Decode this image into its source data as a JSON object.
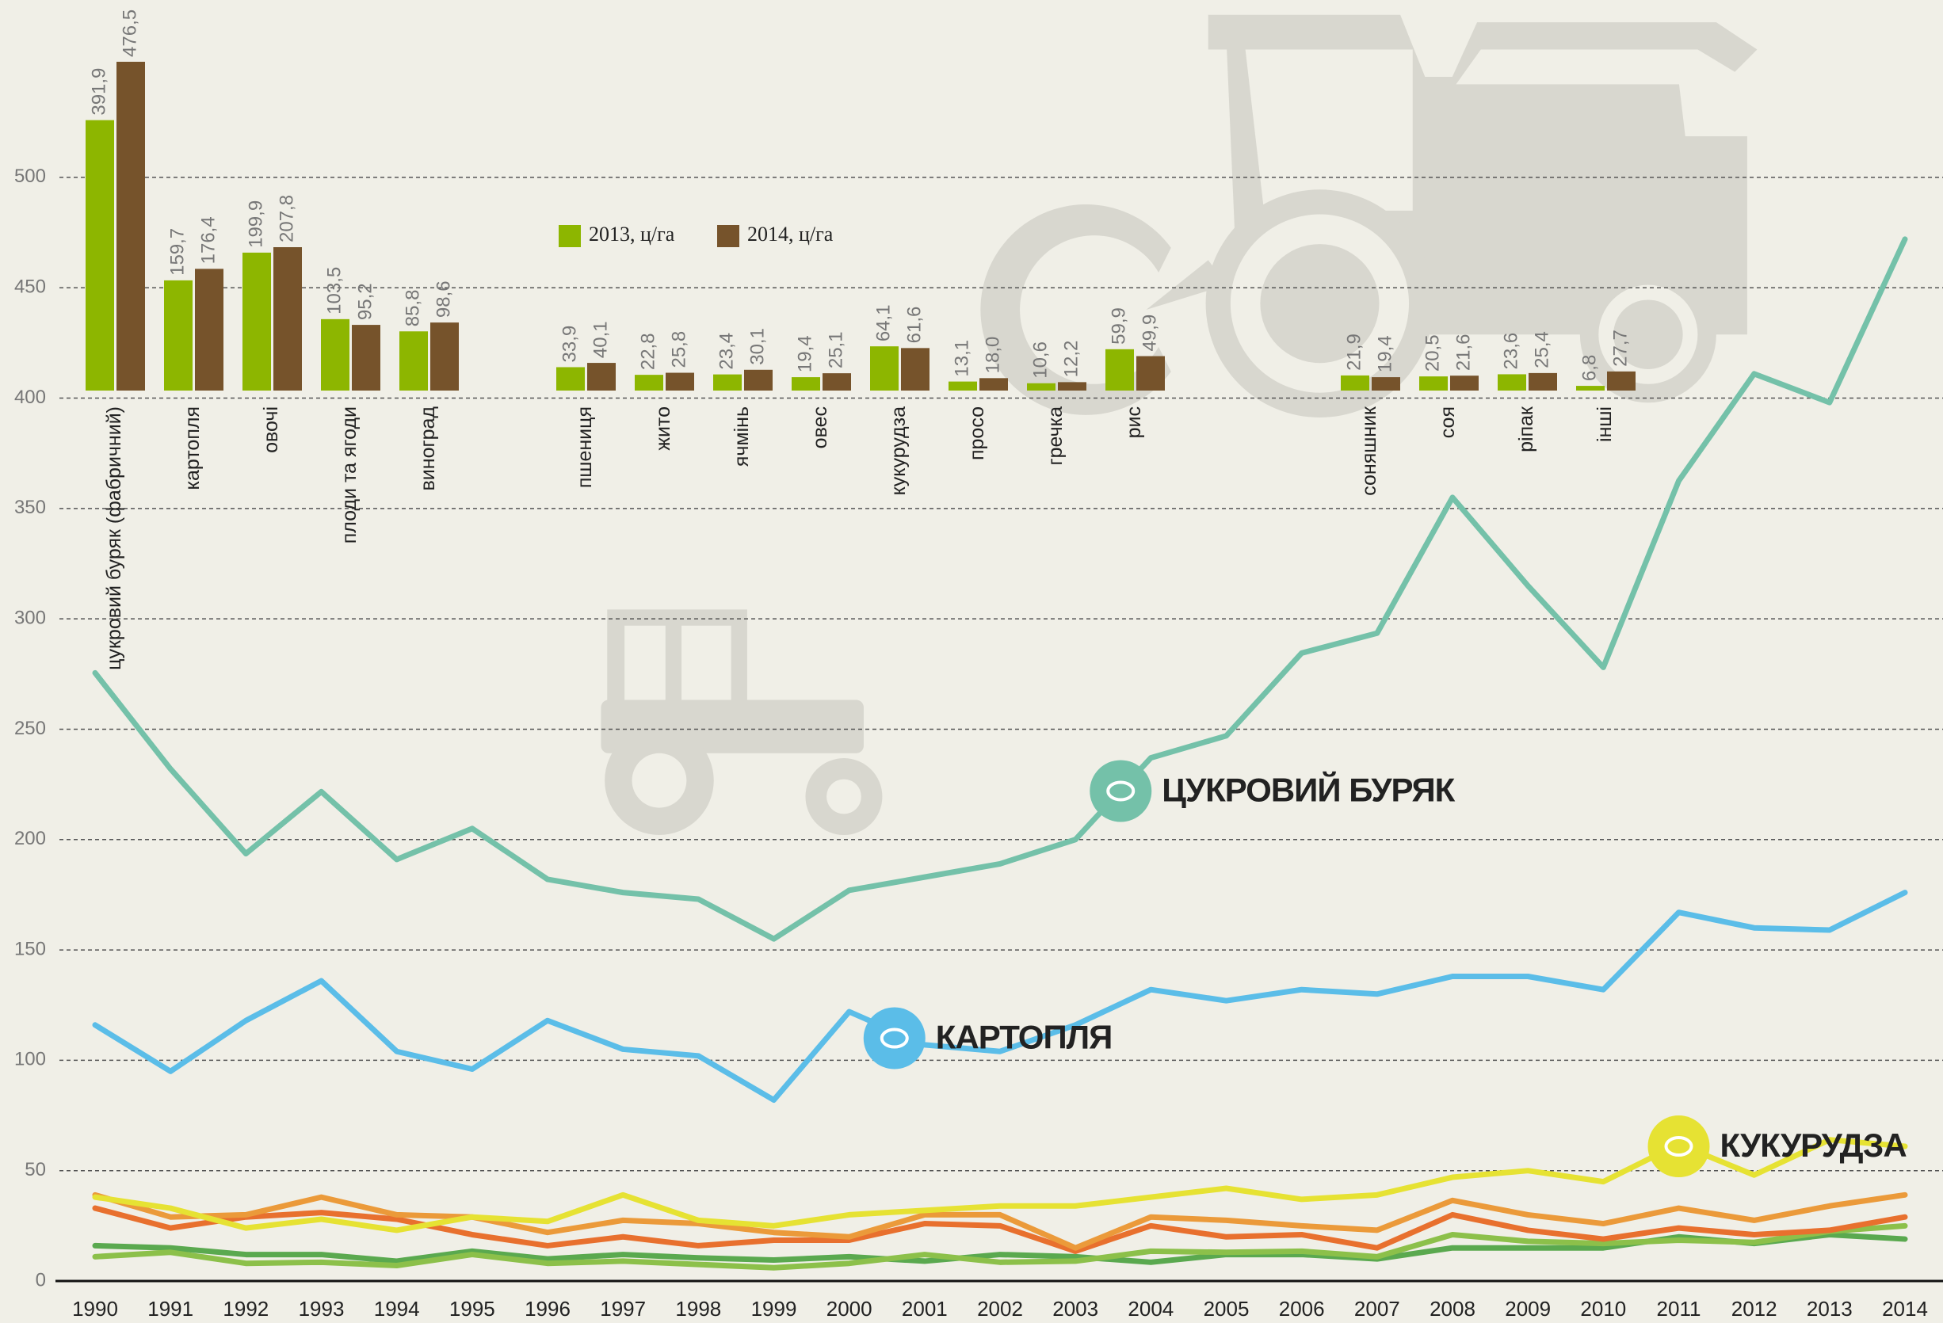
{
  "chart_data": [
    {
      "type": "line",
      "x": [
        1990,
        1991,
        1992,
        1993,
        1994,
        1995,
        1996,
        1997,
        1998,
        1999,
        2000,
        2001,
        2002,
        2003,
        2004,
        2005,
        2006,
        2007,
        2008,
        2009,
        2010,
        2011,
        2012,
        2013,
        2014
      ],
      "xlim": [
        1990,
        2014
      ],
      "xticks": [
        1990,
        1991,
        1992,
        1993,
        1994,
        1995,
        1996,
        1997,
        1998,
        1999,
        2000,
        2001,
        2002,
        2003,
        2004,
        2005,
        2006,
        2007,
        2008,
        2009,
        2010,
        2011,
        2012,
        2013,
        2014
      ],
      "ylim": [
        0,
        580
      ],
      "yticks": [
        0,
        50,
        100,
        150,
        200,
        250,
        300,
        350,
        400,
        450,
        500
      ],
      "grid": true,
      "series": [
        {
          "name": "ЦУКРОВИЙ БУРЯК",
          "color": "#74c1a9",
          "values": [
            275.5,
            232,
            193.6,
            221.7,
            191,
            205,
            182,
            176,
            173,
            155,
            177,
            183,
            189,
            200,
            237,
            247,
            284.5,
            293.5,
            355,
            315,
            278,
            362.5,
            411,
            398,
            472
          ]
        },
        {
          "name": "КАРТОПЛЯ",
          "color": "#5bbde8",
          "values": [
            116,
            95,
            118,
            136,
            104,
            96,
            118,
            105,
            102,
            82,
            122,
            107,
            104,
            116,
            132,
            127,
            132,
            130,
            138,
            138,
            132,
            167,
            160,
            159,
            176
          ]
        },
        {
          "name": "КУКУРУДЗА",
          "color": "#e6e233",
          "values": [
            38,
            33,
            24,
            28,
            23,
            29,
            27,
            39,
            27.5,
            25,
            30,
            32,
            34,
            34,
            38,
            42,
            37,
            39,
            47,
            50,
            45,
            62,
            48,
            64,
            61
          ]
        },
        {
          "color": "#eb9a3a",
          "values": [
            39,
            29,
            30,
            38,
            30,
            29,
            22,
            27.5,
            26,
            22,
            20,
            30,
            30,
            15,
            29,
            27.5,
            25,
            23,
            36.5,
            30,
            26,
            33,
            27.5,
            34,
            39
          ]
        },
        {
          "color": "#e8702e",
          "values": [
            33,
            24,
            29,
            31,
            28,
            21,
            16,
            20,
            16,
            18.5,
            18.5,
            26,
            25,
            13.5,
            25,
            20,
            21,
            15,
            30,
            23,
            19,
            24,
            21,
            23,
            29
          ]
        },
        {
          "color": "#8cc04a",
          "values": [
            11,
            13,
            8,
            8.5,
            7,
            12,
            8,
            9,
            7.5,
            6,
            8,
            12,
            8.5,
            9,
            13.5,
            13,
            13.5,
            11,
            21,
            18,
            17,
            18.5,
            17.5,
            22.5,
            25
          ]
        },
        {
          "color": "#5aa94f",
          "values": [
            16,
            15,
            12,
            12,
            9,
            13.5,
            10,
            12,
            10.5,
            9.5,
            11,
            9,
            12,
            11,
            8.5,
            12,
            12,
            10,
            15,
            15,
            15,
            20,
            17,
            21,
            19
          ]
        }
      ]
    },
    {
      "type": "bar",
      "categories": [
        "цукровий буряк (фабричний)",
        "картопля",
        "овочі",
        "плоди та ягоди",
        "виноград",
        "пшениця",
        "жито",
        "ячмінь",
        "овес",
        "кукурудза",
        "просо",
        "гречка",
        "рис",
        "соняшник",
        "соя",
        "ріпак",
        "інші"
      ],
      "series": [
        {
          "name": "2013, ц/га",
          "color": "#8db600",
          "values": [
            391.9,
            159.7,
            199.9,
            103.5,
            85.8,
            33.9,
            22.8,
            23.4,
            19.4,
            64.1,
            13.1,
            10.6,
            59.9,
            21.9,
            20.5,
            23.6,
            6.8
          ],
          "value_labels": [
            "391,9",
            "159,7",
            "199,9",
            "103,5",
            "85,8",
            "33,9",
            "22,8",
            "23,4",
            "19,4",
            "64,1",
            "13,1",
            "10,6",
            "59,9",
            "21,9",
            "20,5",
            "23,6",
            "6,8"
          ]
        },
        {
          "name": "2014, ц/га",
          "color": "#76532b",
          "values": [
            476.5,
            176.4,
            207.8,
            95.2,
            98.6,
            40.1,
            25.8,
            30.1,
            25.1,
            61.6,
            18.0,
            12.2,
            49.9,
            19.4,
            21.6,
            25.4,
            27.7
          ],
          "value_labels": [
            "476,5",
            "176,4",
            "207,8",
            "95,2",
            "98,6",
            "40,1",
            "25,8",
            "30,1",
            "25,1",
            "61,6",
            "18,0",
            "12,2",
            "49,9",
            "19,4",
            "21,6",
            "25,4",
            "27,7"
          ]
        }
      ]
    }
  ]
}
